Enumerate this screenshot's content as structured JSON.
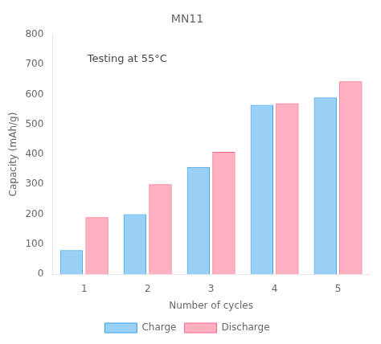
{
  "chart_data": {
    "type": "bar",
    "title": "MN11",
    "annotations": [
      "Testing at 55°C"
    ],
    "xlabel": "Number of cycles",
    "ylabel": "Capacity (mAh/g)",
    "categories": [
      "1",
      "2",
      "3",
      "4",
      "5"
    ],
    "series": [
      {
        "name": "Charge",
        "values": [
          80,
          200,
          358,
          565,
          590
        ]
      },
      {
        "name": "Discharge",
        "values": [
          190,
          300,
          408,
          570,
          643
        ]
      }
    ],
    "ylim": [
      0,
      800
    ],
    "yticks": [
      0,
      100,
      200,
      300,
      400,
      500,
      600,
      700,
      800
    ],
    "grid": false,
    "legend": "bottom"
  }
}
